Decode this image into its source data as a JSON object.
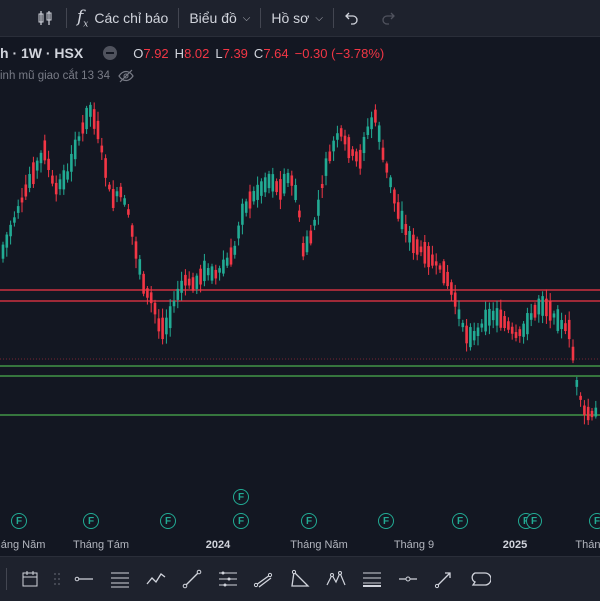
{
  "toolbar": {
    "indicators_label": "Các chỉ báo",
    "chart_label": "Biểu đồ",
    "profile_label": "Hồ sơ"
  },
  "legend": {
    "symbol": "h · 1W · HSX",
    "open_key": "O",
    "open": "7.92",
    "high_key": "H",
    "high": "8.02",
    "low_key": "L",
    "low": "7.39",
    "close_key": "C",
    "close": "7.64",
    "change": "−0.30 (−3.78%)",
    "subtitle": "inh mũ giao cắt 13 34"
  },
  "xaxis": {
    "labels": [
      "háng Năm",
      "Tháng Tám",
      "2024",
      "Tháng Năm",
      "Tháng 9",
      "2025",
      "Tháng"
    ]
  },
  "markers": {
    "label": "F"
  },
  "colors": {
    "up": "#22ab94",
    "down": "#f23645",
    "background": "#131722",
    "hline_red": "#f23645",
    "hline_green": "#4caf50"
  },
  "bottom_tools": [
    "calendar-icon",
    "drag-handle-icon",
    "horizontal-line-icon",
    "multi-line-icon",
    "trend-path-icon",
    "trend-line-icon",
    "ray-table-icon",
    "channel-icon",
    "triangle-icon",
    "pattern-icon",
    "fib-icon",
    "price-range-icon",
    "arrow-icon",
    "callout-icon"
  ]
}
